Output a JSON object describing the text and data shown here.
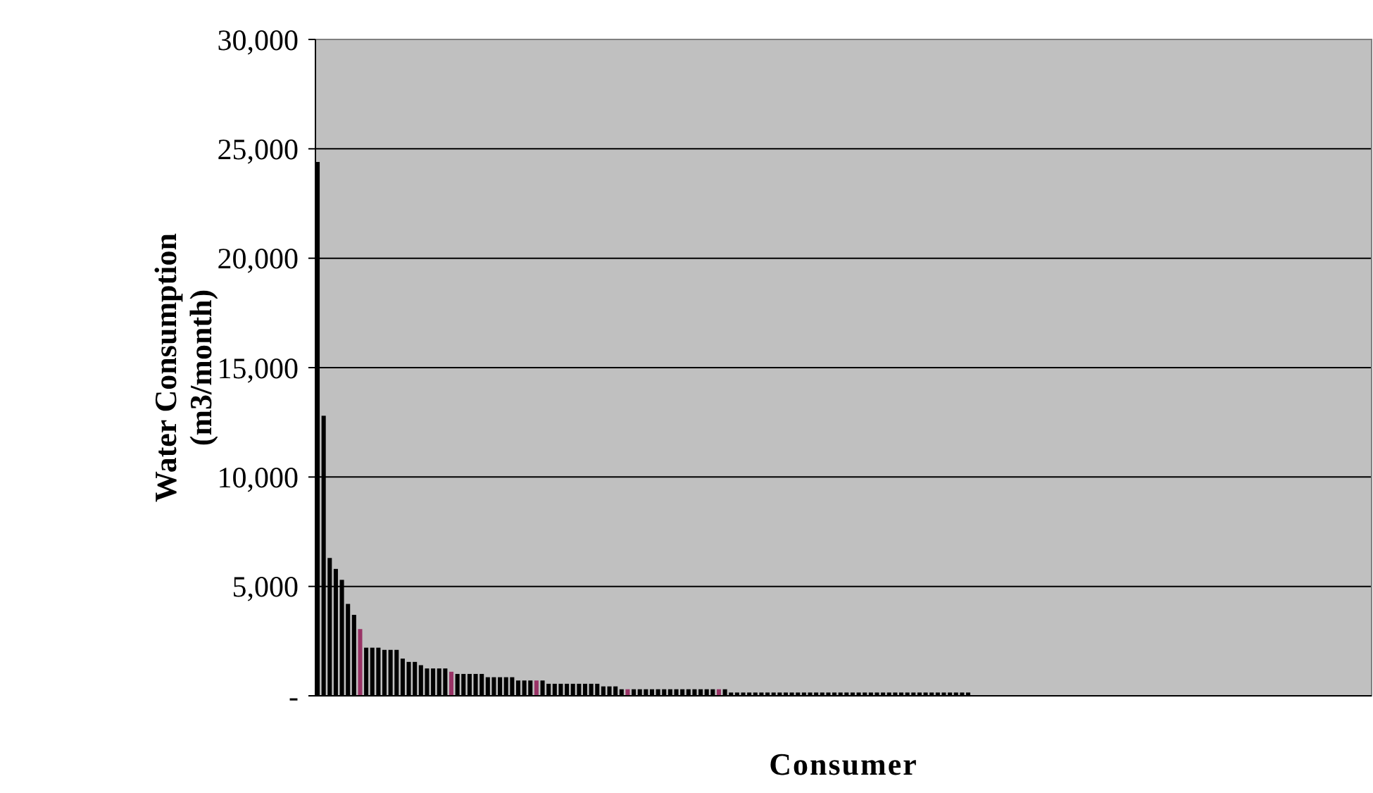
{
  "chart_data": {
    "type": "bar",
    "xlabel": "Consumer",
    "ylabel": "Water Consumption\n(m3/month)",
    "categories": [
      null,
      null,
      null,
      null,
      null,
      null,
      null,
      null,
      null,
      null,
      null,
      null,
      null,
      null,
      null,
      null,
      null,
      null,
      null,
      null,
      null,
      null,
      null,
      null,
      null,
      null,
      null,
      null,
      null,
      null,
      null,
      null,
      null,
      null,
      null,
      null,
      null,
      null,
      null,
      null,
      null,
      null,
      null,
      null,
      null,
      null,
      null,
      null,
      null,
      null,
      null,
      null,
      null,
      null,
      null,
      null,
      null,
      null,
      null,
      null,
      null,
      null,
      null,
      null,
      null,
      null,
      null,
      null,
      null,
      null,
      null,
      null,
      null,
      null,
      null,
      null,
      null,
      null,
      null,
      null,
      null,
      null,
      null,
      null,
      null,
      null,
      null,
      null,
      null,
      null,
      null,
      null,
      null,
      null,
      null,
      null,
      null,
      null,
      null,
      null,
      null,
      null,
      null,
      null,
      null,
      null,
      null,
      null,
      null,
      null,
      null,
      null,
      null,
      null,
      null,
      null,
      null,
      null,
      null,
      null,
      null,
      null,
      null,
      null,
      null,
      null,
      null,
      null,
      null,
      null,
      null,
      null,
      null,
      null,
      null,
      null,
      null,
      null,
      null,
      null,
      null,
      null,
      null,
      null,
      null,
      null,
      null,
      null,
      null,
      null,
      null,
      null,
      null,
      null,
      null,
      null,
      null,
      null,
      null,
      null,
      null,
      null,
      null,
      null,
      null,
      null,
      null,
      null,
      null,
      null,
      null,
      null,
      null,
      null
    ],
    "values": [
      24400,
      12800,
      6300,
      5800,
      5300,
      4200,
      3700,
      3050,
      2200,
      2200,
      2200,
      2100,
      2100,
      2100,
      1700,
      1550,
      1550,
      1400,
      1250,
      1250,
      1250,
      1250,
      1100,
      1000,
      1000,
      1000,
      1000,
      1000,
      850,
      850,
      850,
      850,
      850,
      700,
      700,
      700,
      700,
      700,
      550,
      550,
      550,
      550,
      550,
      550,
      550,
      550,
      550,
      430,
      430,
      430,
      300,
      300,
      300,
      300,
      300,
      300,
      300,
      300,
      300,
      300,
      300,
      300,
      300,
      300,
      300,
      300,
      300,
      300,
      150,
      150,
      150,
      150,
      150,
      150,
      150,
      150,
      150,
      150,
      150,
      150,
      150,
      150,
      150,
      150,
      150,
      150,
      150,
      150,
      150,
      150,
      150,
      150,
      150,
      150,
      150,
      150,
      150,
      150,
      150,
      150,
      150,
      150,
      150,
      150,
      150,
      150,
      150,
      150,
      null,
      null,
      null,
      null,
      null,
      null,
      null,
      null,
      null,
      null,
      null,
      null,
      null,
      null,
      null,
      null,
      null,
      null,
      null,
      null,
      null,
      null,
      null,
      null,
      null,
      null,
      null,
      null,
      null,
      null,
      null,
      null,
      null,
      null,
      null,
      null,
      null,
      null,
      null,
      null,
      null,
      null,
      null,
      null,
      null,
      null,
      null,
      null,
      null,
      null,
      null,
      null,
      null,
      null,
      null,
      null,
      null,
      null,
      null,
      null,
      null,
      null,
      null,
      null,
      null,
      null
    ],
    "colors": [
      "#000000",
      "#000000",
      "#000000",
      "#000000",
      "#000000",
      "#000000",
      "#000000",
      "#993366",
      "#000000",
      "#000000",
      "#000000",
      "#000000",
      "#000000",
      "#000000",
      "#000000",
      "#000000",
      "#000000",
      "#000000",
      "#000000",
      "#000000",
      "#000000",
      "#000000",
      "#993366",
      "#000000",
      "#000000",
      "#000000",
      "#000000",
      "#000000",
      "#000000",
      "#000000",
      "#000000",
      "#000000",
      "#000000",
      "#000000",
      "#000000",
      "#000000",
      "#993366",
      "#000000",
      "#000000",
      "#000000",
      "#000000",
      "#000000",
      "#000000",
      "#000000",
      "#000000",
      "#000000",
      "#000000",
      "#000000",
      "#000000",
      "#000000",
      "#000000",
      "#993366",
      "#000000",
      "#000000",
      "#000000",
      "#000000",
      "#000000",
      "#000000",
      "#000000",
      "#000000",
      "#000000",
      "#000000",
      "#000000",
      "#000000",
      "#000000",
      "#000000",
      "#993366",
      "#000000",
      "#000000",
      "#000000",
      "#000000",
      "#000000",
      "#000000",
      "#000000",
      "#000000",
      "#000000",
      "#000000",
      "#000000",
      "#000000",
      "#000000",
      "#000000",
      "#000000",
      "#000000",
      "#000000",
      "#000000",
      "#000000",
      "#000000",
      "#000000",
      "#000000",
      "#000000",
      "#000000",
      "#000000",
      "#000000",
      "#000000",
      "#000000",
      "#000000",
      "#000000",
      "#000000",
      "#000000",
      "#000000",
      "#000000",
      "#000000",
      "#000000",
      "#000000",
      "#000000",
      "#000000",
      "#000000",
      "#000000",
      null,
      null,
      null,
      null,
      null,
      null,
      null,
      null,
      null,
      null,
      null,
      null,
      null,
      null,
      null,
      null,
      null,
      null,
      null,
      null,
      null,
      null,
      null,
      null,
      null,
      null,
      null,
      null,
      null,
      null,
      null,
      null,
      null,
      null,
      null,
      null,
      null,
      null,
      null,
      null,
      null,
      null,
      null,
      null,
      null,
      null,
      null,
      null,
      null,
      null,
      null,
      null,
      null,
      null,
      null,
      null,
      null,
      null,
      null,
      null,
      null,
      null,
      null,
      null,
      null,
      null
    ],
    "ylim": [
      0,
      30000
    ],
    "yticks": [
      {
        "value": 0,
        "label": "-"
      },
      {
        "value": 5000,
        "label": "5,000"
      },
      {
        "value": 10000,
        "label": "10,000"
      },
      {
        "value": 15000,
        "label": "15,000"
      },
      {
        "value": 20000,
        "label": "20,000"
      },
      {
        "value": 25000,
        "label": "25,000"
      },
      {
        "value": 30000,
        "label": "30,000"
      }
    ],
    "grid": "y"
  }
}
